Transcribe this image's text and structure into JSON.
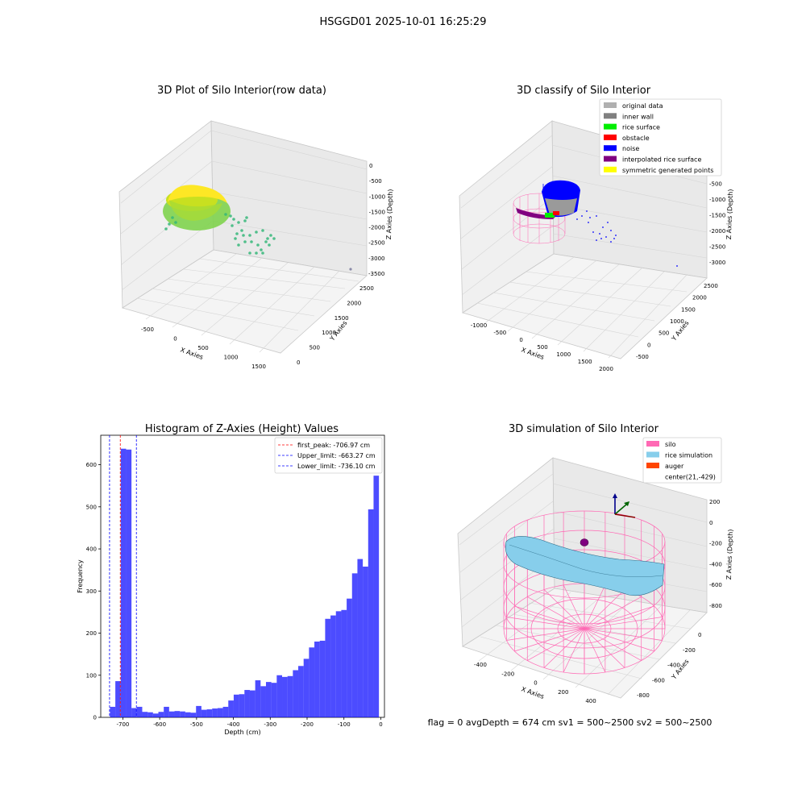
{
  "suptitle": "HSGGD01 2025-10-01 16:25:29",
  "footer": "flag = 0     avgDepth = 674 cm  sv1 = 500~2500  sv2 = 500~2500",
  "panel_raw": {
    "title": "3D Plot of Silo Interior(row data)",
    "xlabel": "X Axies",
    "ylabel": "Y Axies",
    "zlabel": "Z Axies (Depth)",
    "xticks": [
      "-500",
      "0",
      "500",
      "1000",
      "1500"
    ],
    "yticks": [
      "0",
      "500",
      "1000",
      "1500",
      "2000",
      "2500"
    ],
    "zticks": [
      "0",
      "-500",
      "-1000",
      "-1500",
      "-2000",
      "-2500",
      "-3000",
      "-3500"
    ]
  },
  "panel_classify": {
    "title": "3D classify of Silo Interior",
    "xlabel": "X Axies",
    "ylabel": "Y Axies",
    "zlabel": "Z Axies (Depth)",
    "xticks": [
      "-1000",
      "-500",
      "0",
      "500",
      "1000",
      "1500",
      "2000"
    ],
    "yticks": [
      "-500",
      "0",
      "500",
      "1000",
      "1500",
      "2000",
      "2500"
    ],
    "zticks": [
      "0",
      "-500",
      "-1000",
      "-1500",
      "-2000",
      "-2500",
      "-3000"
    ],
    "legend": [
      {
        "label": "original data",
        "color": "#b0b0b0"
      },
      {
        "label": "inner wall",
        "color": "#808080"
      },
      {
        "label": "rice surface",
        "color": "#00ee00"
      },
      {
        "label": "obstacle",
        "color": "#ff0000"
      },
      {
        "label": "noise",
        "color": "#0000ff"
      },
      {
        "label": "interpolated rice surface",
        "color": "#800080"
      },
      {
        "label": "symmetric generated points",
        "color": "#ffff00"
      }
    ]
  },
  "panel_sim": {
    "title": "3D simulation of Silo Interior",
    "xlabel": "X Axies",
    "ylabel": "Y Axies",
    "zlabel": "Z Axies (Depth)",
    "xticks": [
      "-400",
      "-200",
      "0",
      "200",
      "400"
    ],
    "yticks": [
      "-800",
      "-600",
      "-400",
      "-200",
      "0"
    ],
    "zticks": [
      "200",
      "0",
      "-200",
      "-400",
      "-600",
      "-800"
    ],
    "legend": [
      {
        "label": "silo",
        "color": "#ff69b4"
      },
      {
        "label": "rice simulation",
        "color": "#87ceeb"
      },
      {
        "label": "auger",
        "color": "#ff4500"
      },
      {
        "label": "center(21,-429)",
        "color": ""
      }
    ]
  },
  "chart_data": {
    "type": "bar",
    "title": "Histogram of Z-Axies (Height) Values",
    "xlabel": "Depth (cm)",
    "ylabel": "Frequency",
    "xlim": [
      -760,
      10
    ],
    "ylim": [
      0,
      670
    ],
    "xticks": [
      -700,
      -600,
      -500,
      -400,
      -300,
      -200,
      -100,
      0
    ],
    "yticks": [
      0,
      100,
      200,
      300,
      400,
      500,
      600
    ],
    "bin_start": -735,
    "bin_width": 14.6,
    "values": [
      25,
      86,
      638,
      636,
      22,
      25,
      13,
      12,
      9,
      13,
      25,
      14,
      15,
      14,
      12,
      11,
      27,
      18,
      19,
      21,
      22,
      25,
      40,
      54,
      55,
      65,
      64,
      88,
      74,
      84,
      82,
      100,
      96,
      98,
      112,
      122,
      139,
      166,
      180,
      182,
      234,
      242,
      252,
      255,
      282,
      342,
      376,
      358,
      494,
      574
    ],
    "bar_color": "#0000ff",
    "legend_position": "top-right",
    "reference_lines": [
      {
        "label": "first_peak: -706.97 cm",
        "x": -706.97,
        "color": "#ff0000"
      },
      {
        "label": "Upper_limit: -663.27 cm",
        "x": -663.27,
        "color": "#0000ff"
      },
      {
        "label": "Lower_limit: -736.10 cm",
        "x": -736.1,
        "color": "#0000ff"
      }
    ]
  }
}
